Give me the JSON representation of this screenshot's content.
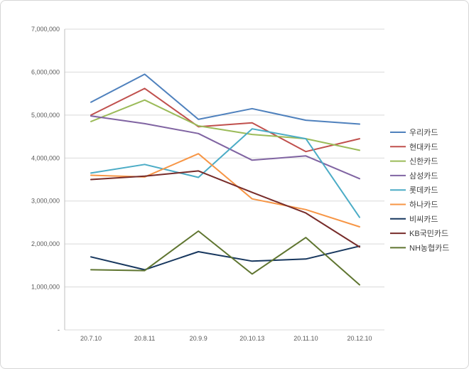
{
  "chart_data": {
    "type": "line",
    "title": "",
    "xlabel": "",
    "ylabel": "",
    "categories": [
      "20.7.10",
      "20.8.11",
      "20.9.9",
      "20.10.13",
      "20.11.10",
      "20.12.10"
    ],
    "series": [
      {
        "name": "우리카드",
        "color": "#4F81BD",
        "values": [
          5300000,
          5950000,
          4900000,
          5150000,
          4880000,
          4790000
        ]
      },
      {
        "name": "현대카드",
        "color": "#C0504D",
        "values": [
          5000000,
          5620000,
          4730000,
          4820000,
          4150000,
          4450000
        ]
      },
      {
        "name": "신한카드",
        "color": "#9BBB59",
        "values": [
          4850000,
          5350000,
          4750000,
          4550000,
          4450000,
          4180000
        ]
      },
      {
        "name": "삼성카드",
        "color": "#8064A2",
        "values": [
          4980000,
          4800000,
          4570000,
          3950000,
          4050000,
          3520000
        ]
      },
      {
        "name": "롯데카드",
        "color": "#4BACC6",
        "values": [
          3650000,
          3850000,
          3550000,
          4680000,
          4450000,
          2620000
        ]
      },
      {
        "name": "하나카드",
        "color": "#F79646",
        "values": [
          3600000,
          3560000,
          4100000,
          3050000,
          2800000,
          2400000
        ]
      },
      {
        "name": "비씨카드",
        "color": "#17375E",
        "values": [
          1700000,
          1400000,
          1820000,
          1600000,
          1650000,
          1950000
        ]
      },
      {
        "name": "KB국민카드",
        "color": "#772C2A",
        "values": [
          3500000,
          3580000,
          3700000,
          3200000,
          2720000,
          1930000
        ]
      },
      {
        "name": "NH농협카드",
        "color": "#5F7530",
        "values": [
          1400000,
          1380000,
          2300000,
          1300000,
          2150000,
          1050000
        ]
      }
    ],
    "ylim": [
      0,
      7000000
    ],
    "ytick_step": 1000000,
    "ytick_labels": [
      "-",
      "1,000,000",
      "2,000,000",
      "3,000,000",
      "4,000,000",
      "5,000,000",
      "6,000,000",
      "7,000,000"
    ],
    "grid": true,
    "legend_position": "right"
  }
}
